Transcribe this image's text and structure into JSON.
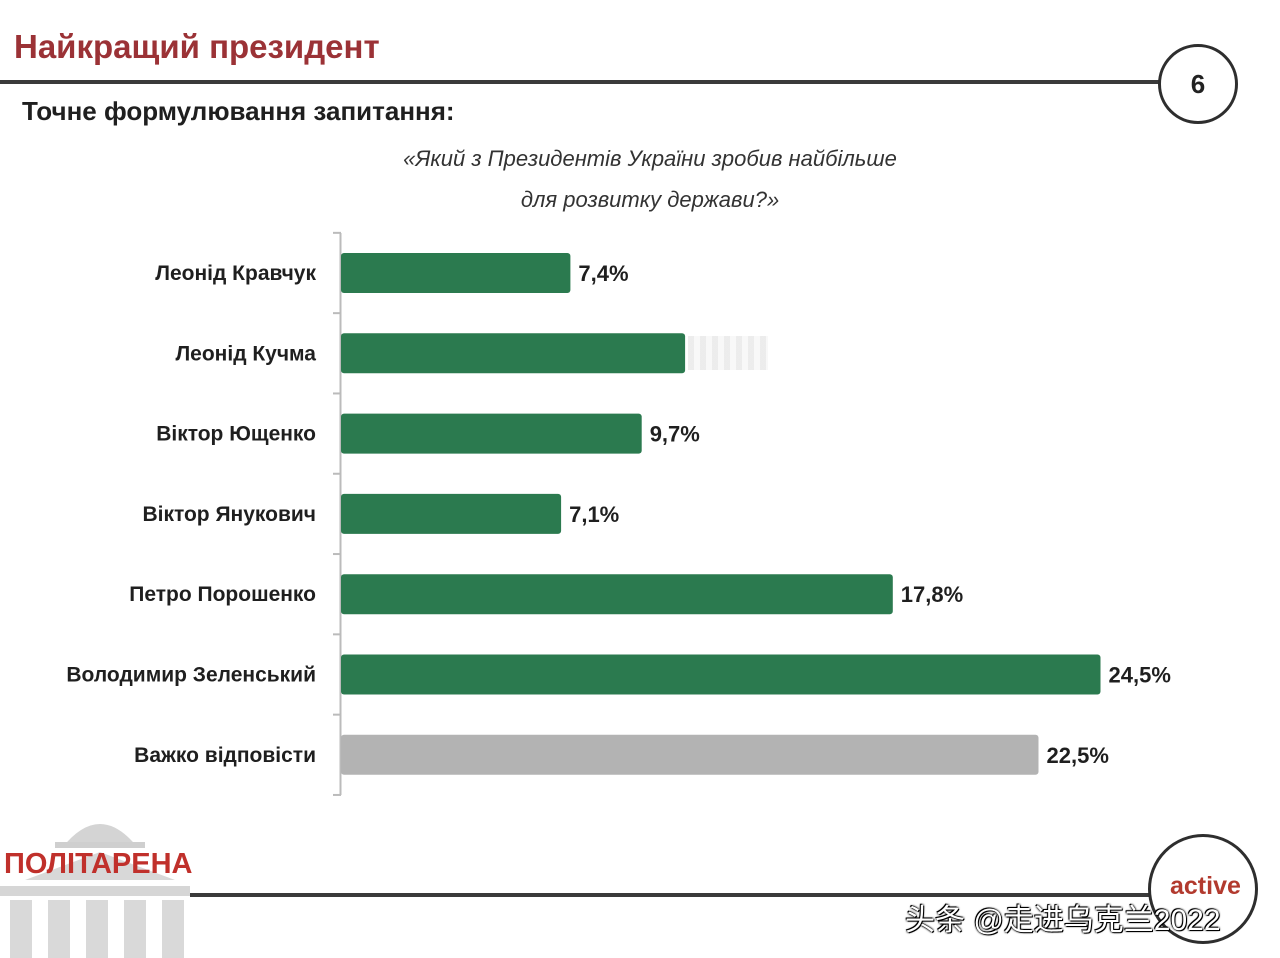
{
  "header": {
    "title": "Найкращий президент",
    "page_number": "6"
  },
  "question": {
    "label": "Точне формулювання запитання:",
    "line1": "«Який з Президентів України зробив найбільше",
    "line2": "для розвитку держави?»"
  },
  "chart_data": {
    "type": "bar",
    "orientation": "horizontal",
    "categories": [
      "Леонід Кравчук",
      "Леонід Кучма",
      "Віктор Ющенко",
      "Віктор Янукович",
      "Петро Порошенко",
      "Володимир Зеленський",
      "Важко відповісти"
    ],
    "values": [
      7.4,
      11.1,
      9.7,
      7.1,
      17.8,
      24.5,
      22.5
    ],
    "value_labels": [
      "7,4%",
      "",
      "9,7%",
      "7,1%",
      "17,8%",
      "24,5%",
      "22,5%"
    ],
    "colors": [
      "#2b7a4f",
      "#2b7a4f",
      "#2b7a4f",
      "#2b7a4f",
      "#2b7a4f",
      "#2b7a4f",
      "#b3b3b3"
    ],
    "unit": "%",
    "grid": false
  },
  "footer": {
    "logo_text": "ПОЛІТАРЕНА",
    "brand": "active",
    "watermark": "头条 @走进乌克兰2022"
  },
  "colors": {
    "title": "#9b3236",
    "bar": "#2b7a4f",
    "bar_other": "#b3b3b3",
    "logo": "#c0302b"
  }
}
